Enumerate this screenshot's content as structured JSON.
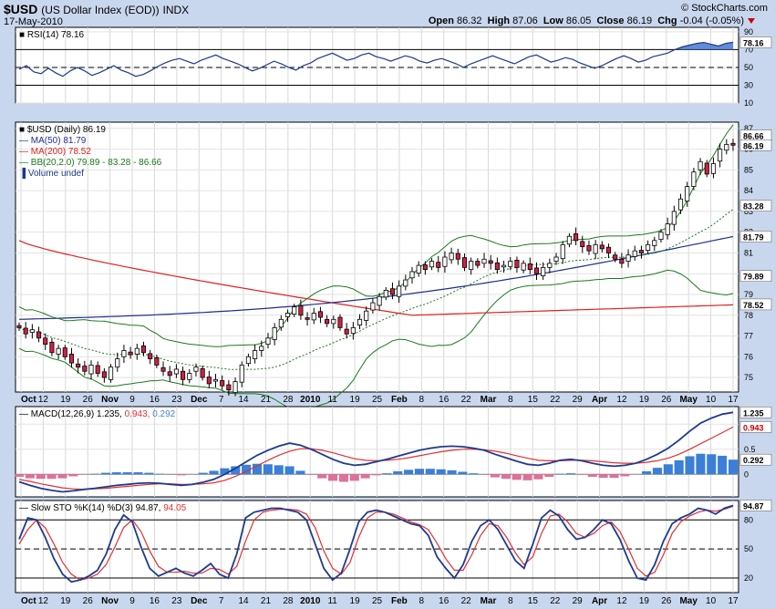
{
  "header": {
    "symbol": "$USD",
    "name": "(US Dollar Index (EOD))",
    "exchange": "INDX",
    "date": "17-May-2010",
    "copyright": "© StockCharts.com",
    "open_label": "Open",
    "open": "86.32",
    "high_label": "High",
    "high": "87.06",
    "low_label": "Low",
    "low": "86.05",
    "close_label": "Close",
    "close": "86.19",
    "chg_label": "Chg",
    "chg": "-0.04 (-0.05%)"
  },
  "colors": {
    "background": "#c9d7ee",
    "panel": "#ffffff",
    "up_candle": "#ffffff",
    "down_candle": "#cc2244",
    "ma50": "#1f2f8f",
    "ma200": "#e02020",
    "bb": "#1a7a1a",
    "macd": "#1f3a8f",
    "signal": "#e03030",
    "hist_pos": "#3b7fd8",
    "hist_neg": "#e0709a"
  },
  "chart_data": [
    {
      "type": "line",
      "panel": "rsi",
      "legend": "RSI(14) 78.16",
      "last_label": "78.16",
      "ylim": [
        10,
        95
      ],
      "yticks": [
        90,
        70,
        50,
        30,
        10
      ],
      "reference_lines": [
        70,
        50,
        30
      ],
      "values": [
        48,
        52,
        45,
        43,
        49,
        44,
        40,
        46,
        50,
        46,
        41,
        44,
        48,
        52,
        47,
        44,
        40,
        42,
        46,
        51,
        55,
        58,
        60,
        57,
        54,
        58,
        61,
        64,
        60,
        57,
        54,
        50,
        46,
        49,
        53,
        57,
        54,
        50,
        47,
        52,
        55,
        60,
        63,
        66,
        62,
        58,
        60,
        64,
        66,
        62,
        60,
        57,
        60,
        63,
        61,
        57,
        55,
        58,
        60,
        57,
        54,
        50,
        54,
        57,
        60,
        63,
        60,
        57,
        54,
        58,
        62,
        64,
        60,
        56,
        58,
        61,
        59,
        55,
        52,
        49,
        52,
        56,
        60,
        63,
        60,
        56,
        58,
        62,
        64,
        66,
        70,
        73,
        75,
        77,
        78,
        76,
        74,
        77,
        78.16
      ]
    },
    {
      "type": "candlestick",
      "panel": "price",
      "legend": {
        "price": "$USD (Daily) 86.19",
        "ma50": "MA(50) 81.79",
        "ma200": "MA(200) 78.52",
        "bb": "BB(20,2.0) 79.89 - 83.28 - 86.66",
        "volume": "Volume undef"
      },
      "ylim": [
        74.3,
        87.3
      ],
      "yticks": [
        87,
        86,
        85,
        84,
        83,
        82,
        81,
        80,
        79,
        78,
        77,
        76,
        75
      ],
      "last_value_labels": {
        "bb_upper": "86.66",
        "close": "86.19",
        "bb_mid": "83.28",
        "ma50": "81.79",
        "bb_lower": "79.89",
        "ma200": "78.52"
      },
      "closes": [
        77.4,
        77.1,
        77.3,
        76.9,
        76.6,
        76.2,
        76.4,
        76.0,
        75.7,
        75.5,
        75.3,
        75.6,
        75.2,
        75.0,
        75.5,
        75.9,
        76.3,
        76.1,
        76.4,
        76.2,
        75.9,
        75.6,
        75.3,
        75.1,
        75.4,
        74.9,
        75.2,
        75.5,
        75.0,
        74.7,
        74.9,
        74.6,
        74.4,
        74.8,
        75.6,
        76.0,
        76.3,
        76.5,
        76.9,
        77.4,
        77.8,
        78.1,
        78.4,
        78.0,
        77.8,
        78.1,
        77.9,
        77.6,
        77.8,
        77.4,
        77.1,
        77.4,
        77.8,
        78.2,
        78.6,
        78.9,
        79.2,
        79.0,
        79.4,
        79.7,
        80.1,
        80.4,
        80.2,
        80.6,
        80.3,
        80.8,
        81.0,
        80.7,
        80.3,
        80.6,
        80.4,
        80.7,
        80.5,
        80.2,
        80.4,
        80.6,
        80.3,
        80.5,
        80.2,
        80.0,
        80.3,
        80.5,
        80.8,
        81.4,
        81.8,
        81.6,
        81.3,
        81.1,
        81.4,
        81.2,
        81.0,
        80.7,
        80.5,
        80.9,
        81.1,
        81.0,
        81.4,
        81.6,
        82.0,
        82.4,
        83.0,
        83.6,
        84.2,
        84.9,
        85.4,
        84.8,
        85.3,
        86.0,
        86.23,
        86.19
      ]
    },
    {
      "type": "line",
      "panel": "macd",
      "legend": {
        "name": "MACD(12,26,9)",
        "macd": "1.235",
        "signal": "0.943",
        "hist": "0.292"
      },
      "last_labels": {
        "macd": "1.235",
        "signal": "0.943",
        "hist": "0.292",
        "zero": "0.0"
      },
      "ylim": [
        -0.45,
        1.35
      ],
      "yticks": [
        1.0,
        0.5,
        0.0
      ],
      "macd": [
        -0.15,
        -0.22,
        -0.28,
        -0.32,
        -0.35,
        -0.33,
        -0.3,
        -0.28,
        -0.25,
        -0.22,
        -0.2,
        -0.18,
        -0.17,
        -0.18,
        -0.2,
        -0.22,
        -0.2,
        -0.16,
        -0.1,
        0.0,
        0.12,
        0.25,
        0.38,
        0.48,
        0.56,
        0.62,
        0.58,
        0.5,
        0.4,
        0.3,
        0.22,
        0.18,
        0.2,
        0.25,
        0.3,
        0.36,
        0.42,
        0.48,
        0.52,
        0.55,
        0.56,
        0.55,
        0.52,
        0.48,
        0.4,
        0.33,
        0.26,
        0.2,
        0.18,
        0.22,
        0.28,
        0.3,
        0.27,
        0.22,
        0.18,
        0.16,
        0.18,
        0.22,
        0.3,
        0.4,
        0.52,
        0.68,
        0.86,
        1.02,
        1.12,
        1.2,
        1.235
      ],
      "signal": [
        -0.1,
        -0.14,
        -0.19,
        -0.23,
        -0.27,
        -0.29,
        -0.3,
        -0.29,
        -0.28,
        -0.26,
        -0.24,
        -0.22,
        -0.2,
        -0.19,
        -0.19,
        -0.2,
        -0.2,
        -0.19,
        -0.17,
        -0.12,
        -0.04,
        0.06,
        0.17,
        0.28,
        0.38,
        0.46,
        0.51,
        0.51,
        0.48,
        0.43,
        0.37,
        0.31,
        0.28,
        0.27,
        0.28,
        0.3,
        0.33,
        0.37,
        0.41,
        0.45,
        0.48,
        0.5,
        0.5,
        0.49,
        0.46,
        0.42,
        0.37,
        0.32,
        0.28,
        0.27,
        0.27,
        0.28,
        0.28,
        0.27,
        0.25,
        0.23,
        0.22,
        0.22,
        0.24,
        0.27,
        0.32,
        0.4,
        0.5,
        0.61,
        0.72,
        0.83,
        0.943
      ]
    },
    {
      "type": "line",
      "panel": "stochastic",
      "legend": {
        "name": "Slow STO %K(14) %D(3)",
        "k": "94.87",
        "d": "94.05"
      },
      "last_label": "94.87",
      "ylim": [
        5,
        100
      ],
      "yticks": [
        80,
        50,
        20
      ],
      "reference_lines": [
        80,
        50,
        20
      ],
      "k": [
        60,
        82,
        80,
        62,
        40,
        24,
        16,
        18,
        22,
        28,
        45,
        70,
        85,
        78,
        52,
        30,
        22,
        26,
        30,
        25,
        22,
        28,
        35,
        24,
        20,
        45,
        82,
        88,
        90,
        92,
        92,
        90,
        88,
        80,
        55,
        30,
        18,
        25,
        50,
        78,
        88,
        90,
        88,
        84,
        80,
        76,
        74,
        64,
        42,
        30,
        20,
        34,
        58,
        74,
        80,
        70,
        54,
        38,
        30,
        55,
        82,
        90,
        84,
        70,
        60,
        62,
        70,
        80,
        76,
        60,
        38,
        20,
        18,
        34,
        58,
        76,
        82,
        86,
        92,
        90,
        86,
        92,
        94.87
      ],
      "d": [
        55,
        70,
        80,
        72,
        55,
        36,
        24,
        18,
        20,
        24,
        34,
        52,
        72,
        80,
        68,
        48,
        32,
        26,
        26,
        27,
        25,
        25,
        30,
        29,
        24,
        32,
        58,
        80,
        88,
        90,
        91,
        91,
        90,
        86,
        72,
        48,
        30,
        24,
        36,
        62,
        82,
        88,
        88,
        86,
        82,
        78,
        75,
        70,
        56,
        40,
        28,
        28,
        44,
        64,
        76,
        74,
        62,
        46,
        34,
        42,
        66,
        84,
        86,
        78,
        66,
        62,
        66,
        74,
        78,
        68,
        50,
        30,
        22,
        26,
        44,
        66,
        78,
        84,
        88,
        90,
        89,
        91,
        94.05
      ]
    }
  ],
  "x_axis": {
    "labels": [
      "Oct",
      "12",
      "19",
      "26",
      "Nov",
      "9",
      "16",
      "23",
      "Dec",
      "7",
      "14",
      "21",
      "28",
      "2010",
      "11",
      "19",
      "25",
      "Feb",
      "8",
      "16",
      "22",
      "Mar",
      "8",
      "15",
      "22",
      "29",
      "Apr",
      "12",
      "19",
      "26",
      "May",
      "10",
      "17"
    ],
    "bold": [
      "Oct",
      "Nov",
      "Dec",
      "2010",
      "Feb",
      "Mar",
      "Apr",
      "May"
    ]
  }
}
